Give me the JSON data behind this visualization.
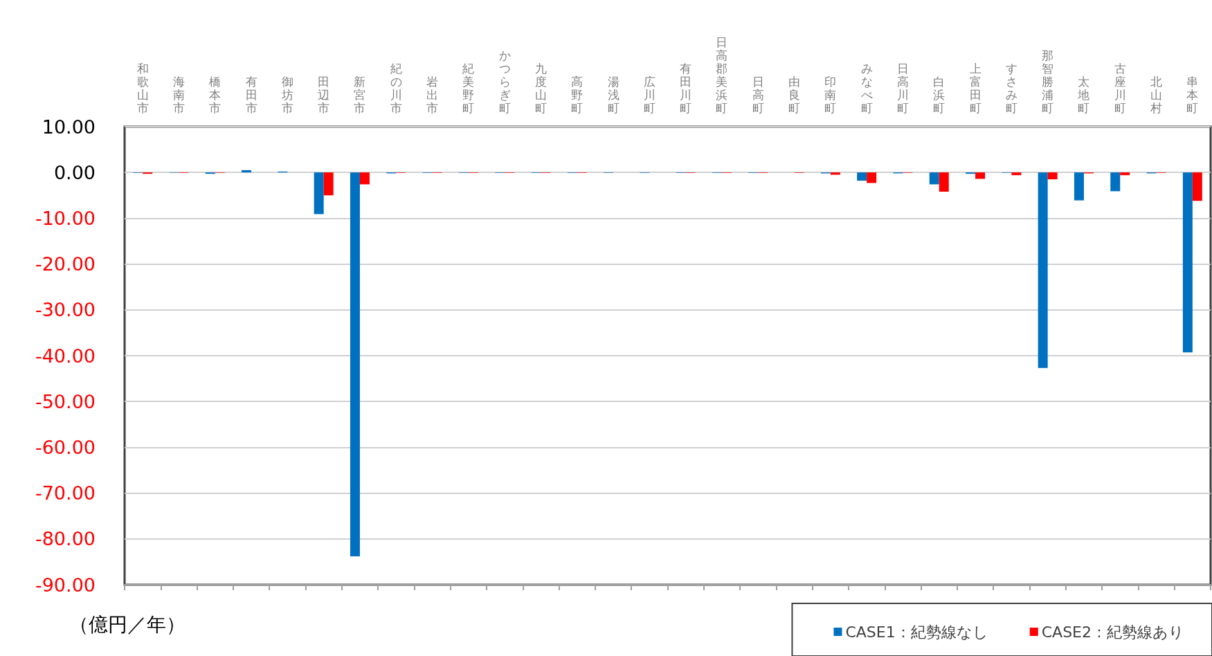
{
  "chart_data": {
    "type": "bar",
    "ylabel": "（億円／年）",
    "categories": [
      "和歌山市",
      "海南市",
      "橋本市",
      "有田市",
      "御坊市",
      "田辺市",
      "新宮市",
      "紀の川市",
      "岩出市",
      "紀美野町",
      "かつらぎ町",
      "九度山町",
      "高野町",
      "湯浅町",
      "広川町",
      "有田川町",
      "日高郡美浜町",
      "日高町",
      "由良町",
      "印南町",
      "みなべ町",
      "日高川町",
      "白浜町",
      "上富田町",
      "すさみ町",
      "那智勝浦町",
      "太地町",
      "古座川町",
      "北山村",
      "串本町"
    ],
    "series": [
      {
        "name": "CASE1：紀勢線なし",
        "color": "#0070c0",
        "values": [
          -0.1,
          -0.1,
          -0.3,
          0.5,
          0.2,
          -9.1,
          -83.8,
          -0.2,
          -0.1,
          -0.1,
          -0.1,
          -0.1,
          -0.1,
          -0.1,
          -0.1,
          -0.1,
          -0.1,
          -0.1,
          null,
          -0.2,
          -1.8,
          -0.2,
          -2.6,
          -0.3,
          -0.1,
          -42.7,
          -6.1,
          -4.1,
          -0.2,
          -39.3
        ]
      },
      {
        "name": "CASE2：紀勢線あり",
        "color": "#ff0000",
        "values": [
          -0.3,
          -0.1,
          -0.1,
          0.0,
          null,
          -5.0,
          -2.6,
          -0.1,
          -0.1,
          -0.1,
          -0.1,
          -0.1,
          -0.1,
          0.0,
          0.0,
          -0.1,
          -0.1,
          -0.1,
          -0.1,
          -0.5,
          -2.3,
          -0.1,
          -4.2,
          -1.4,
          -0.6,
          -1.5,
          -0.2,
          -0.6,
          -0.1,
          -6.2
        ]
      }
    ],
    "ylim": [
      -90,
      10
    ],
    "yticks": [
      {
        "value": -90,
        "label": "-90.00"
      },
      {
        "value": -80,
        "label": "-80.00"
      },
      {
        "value": -70,
        "label": "-70.00"
      },
      {
        "value": -60,
        "label": "-60.00"
      },
      {
        "value": -50,
        "label": "-50.00"
      },
      {
        "value": -40,
        "label": "-40.00"
      },
      {
        "value": -30,
        "label": "-30.00"
      },
      {
        "value": -20,
        "label": "-20.00"
      },
      {
        "value": -10,
        "label": "-10.00"
      },
      {
        "value": 0,
        "label": "0.00"
      },
      {
        "value": 10,
        "label": "10.00"
      }
    ],
    "grid": "y",
    "legend": "bottom right"
  }
}
